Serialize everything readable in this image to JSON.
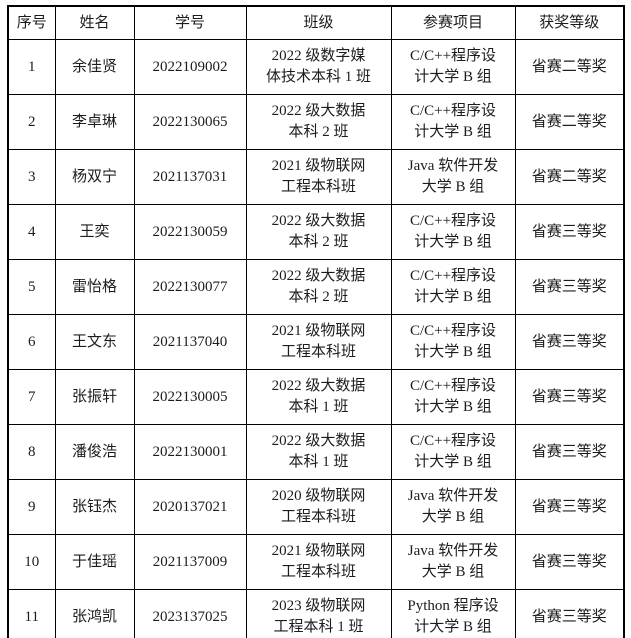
{
  "page": {
    "background_color": "#ffffff",
    "border_color": "#000000",
    "text_color": "#1c1c1c"
  },
  "table": {
    "headers": {
      "index": "序号",
      "name": "姓名",
      "student_id": "学号",
      "class_name": "班级",
      "project": "参赛项目",
      "award": "获奖等级"
    },
    "rows": [
      {
        "index": "1",
        "name": "余佳贤",
        "student_id": "2022109002",
        "class_name": "2022 级数字媒\n体技术本科 1 班",
        "project": "C/C++程序设\n计大学 B 组",
        "award": "省赛二等奖"
      },
      {
        "index": "2",
        "name": "李卓琳",
        "student_id": "2022130065",
        "class_name": "2022 级大数据\n本科 2 班",
        "project": "C/C++程序设\n计大学 B 组",
        "award": "省赛二等奖"
      },
      {
        "index": "3",
        "name": "杨双宁",
        "student_id": "2021137031",
        "class_name": "2021 级物联网\n工程本科班",
        "project": "Java 软件开发\n大学 B 组",
        "award": "省赛二等奖"
      },
      {
        "index": "4",
        "name": "王奕",
        "student_id": "2022130059",
        "class_name": "2022 级大数据\n本科 2 班",
        "project": "C/C++程序设\n计大学 B 组",
        "award": "省赛三等奖"
      },
      {
        "index": "5",
        "name": "雷怡格",
        "student_id": "2022130077",
        "class_name": "2022 级大数据\n本科 2 班",
        "project": "C/C++程序设\n计大学 B 组",
        "award": "省赛三等奖"
      },
      {
        "index": "6",
        "name": "王文东",
        "student_id": "2021137040",
        "class_name": "2021 级物联网\n工程本科班",
        "project": "C/C++程序设\n计大学 B 组",
        "award": "省赛三等奖"
      },
      {
        "index": "7",
        "name": "张振轩",
        "student_id": "2022130005",
        "class_name": "2022 级大数据\n本科 1 班",
        "project": "C/C++程序设\n计大学 B 组",
        "award": "省赛三等奖"
      },
      {
        "index": "8",
        "name": "潘俊浩",
        "student_id": "2022130001",
        "class_name": "2022 级大数据\n本科 1 班",
        "project": "C/C++程序设\n计大学 B 组",
        "award": "省赛三等奖"
      },
      {
        "index": "9",
        "name": "张钰杰",
        "student_id": "2020137021",
        "class_name": "2020 级物联网\n工程本科班",
        "project": "Java 软件开发\n大学 B 组",
        "award": "省赛三等奖"
      },
      {
        "index": "10",
        "name": "于佳瑶",
        "student_id": "2021137009",
        "class_name": "2021 级物联网\n工程本科班",
        "project": "Java 软件开发\n大学 B 组",
        "award": "省赛三等奖"
      },
      {
        "index": "11",
        "name": "张鸿凯",
        "student_id": "2023137025",
        "class_name": "2023 级物联网\n工程本科 1 班",
        "project": "Python 程序设\n计大学 B 组",
        "award": "省赛三等奖"
      }
    ]
  }
}
